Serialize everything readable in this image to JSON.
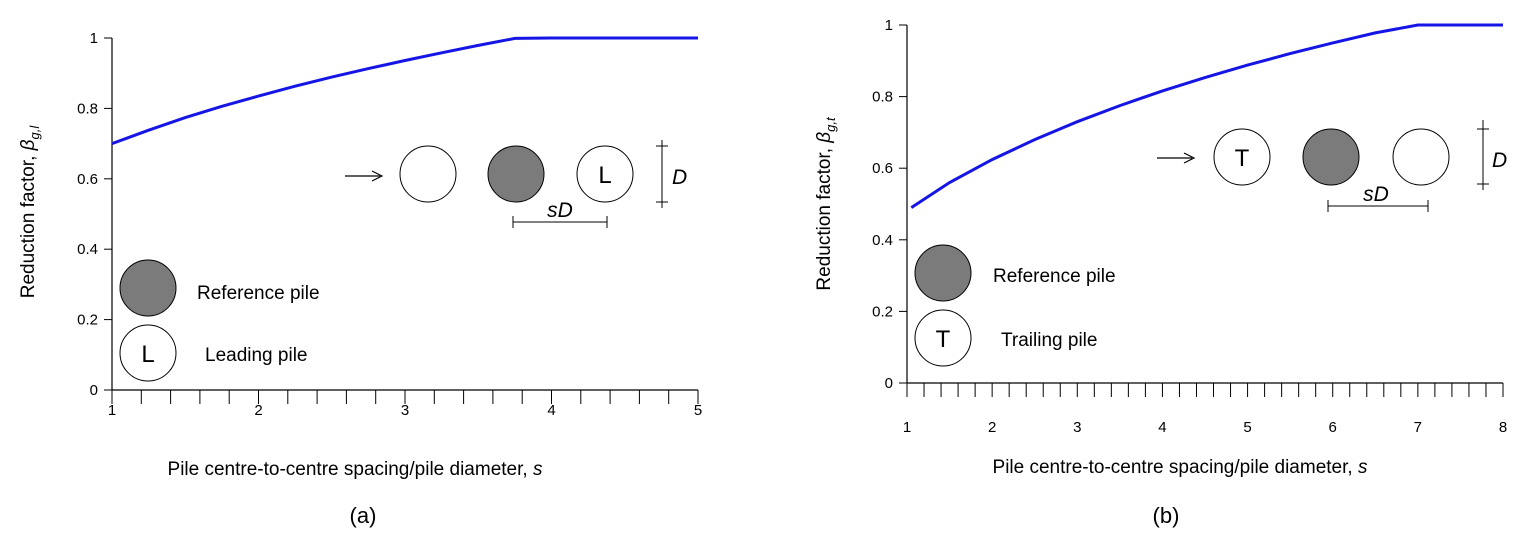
{
  "chart_data": [
    {
      "type": "line",
      "panel_label": "(a)",
      "xlabel_text": "Pile centre-to-centre spacing/pile diameter, ",
      "xlabel_var": "s",
      "ylabel_text": "Reduction factor, ",
      "ylabel_var": "β",
      "ylabel_sub": "g,l",
      "xlim": [
        1,
        5
      ],
      "ylim": [
        0,
        1
      ],
      "x_ticks": [
        "1",
        "2",
        "3",
        "4",
        "5"
      ],
      "y_ticks": [
        "0",
        "0.2",
        "0.4",
        "0.6",
        "0.8",
        "1"
      ],
      "series_color": "#1515e6",
      "x": [
        1,
        1.25,
        1.5,
        1.75,
        2,
        2.25,
        2.5,
        2.75,
        3,
        3.25,
        3.5,
        3.75,
        4,
        4.5,
        5
      ],
      "y": [
        0.7,
        0.738,
        0.774,
        0.806,
        0.835,
        0.863,
        0.889,
        0.913,
        0.936,
        0.958,
        0.979,
        0.999,
        1.0,
        1.0,
        1.0
      ],
      "legend": [
        {
          "symbol": "filled",
          "label": "Reference pile"
        },
        {
          "symbol": "L",
          "label": "Leading pile"
        }
      ],
      "inset": {
        "circle_letter": "L",
        "order": [
          "empty",
          "filled",
          "L"
        ],
        "spacing_label_italic": "sD",
        "diameter_label": "D"
      }
    },
    {
      "type": "line",
      "panel_label": "(b)",
      "xlabel_text": "Pile centre-to-centre spacing/pile diameter, ",
      "xlabel_var": "s",
      "ylabel_text": "Reduction factor, ",
      "ylabel_var": "β",
      "ylabel_sub": "g,t",
      "xlim": [
        1,
        8
      ],
      "ylim": [
        0,
        1
      ],
      "x_ticks": [
        "1",
        "2",
        "3",
        "4",
        "5",
        "6",
        "7",
        "8"
      ],
      "y_ticks": [
        "0",
        "0.2",
        "0.4",
        "0.6",
        "0.8",
        "1"
      ],
      "series_color": "#1515e6",
      "x": [
        1.05,
        1.5,
        2,
        2.5,
        3,
        3.5,
        4,
        4.5,
        5,
        5.5,
        6,
        6.5,
        7,
        7.5,
        8
      ],
      "y": [
        0.49,
        0.56,
        0.624,
        0.68,
        0.73,
        0.775,
        0.816,
        0.853,
        0.888,
        0.92,
        0.95,
        0.978,
        1.0,
        1.0,
        1.0
      ],
      "legend": [
        {
          "symbol": "filled",
          "label": "Reference pile"
        },
        {
          "symbol": "T",
          "label": "Trailing pile"
        }
      ],
      "inset": {
        "circle_letter": "T",
        "order": [
          "T",
          "filled",
          "empty"
        ],
        "spacing_label_italic": "sD",
        "diameter_label": "D"
      }
    }
  ]
}
